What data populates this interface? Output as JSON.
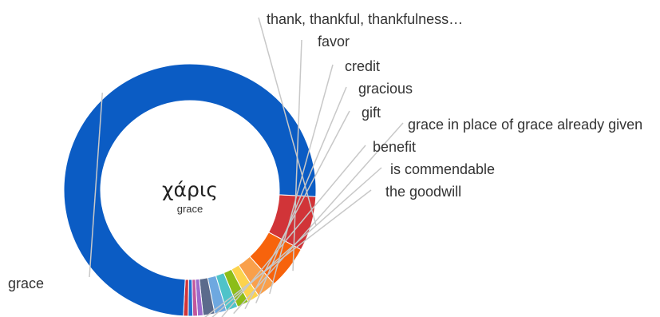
{
  "chart_data": {
    "type": "pie",
    "center_word": "χάρις",
    "center_gloss": "grace",
    "slices": [
      {
        "label": "thank, thankful, thankfulness…",
        "value": 7.0,
        "color": "#d13438"
      },
      {
        "label": "favor",
        "value": 5.5,
        "color": "#f7630c"
      },
      {
        "label": "credit",
        "value": 2.5,
        "color": "#f9a04b"
      },
      {
        "label": "gracious",
        "value": 1.5,
        "color": "#fcd34d"
      },
      {
        "label": "gift",
        "value": 1.5,
        "color": "#8cbd18"
      },
      {
        "label": "grace in place of grace already given",
        "value": 1.5,
        "color": "#4fc3c9"
      },
      {
        "label": "benefit",
        "value": 1.5,
        "color": "#6ea8e0"
      },
      {
        "label": "is commendable",
        "value": 1.5,
        "color": "#5b6b8c"
      },
      {
        "label": "the goodwill",
        "value": 0.7,
        "color": "#9b6bcc"
      },
      {
        "label": "",
        "value": 0.6,
        "color": "#c2569c"
      },
      {
        "label": "",
        "value": 0.6,
        "color": "#1e6fd1"
      },
      {
        "label": "",
        "value": 0.6,
        "color": "#d13438"
      },
      {
        "label": "grace",
        "value": 75.0,
        "color": "#0b5cc4"
      }
    ]
  }
}
